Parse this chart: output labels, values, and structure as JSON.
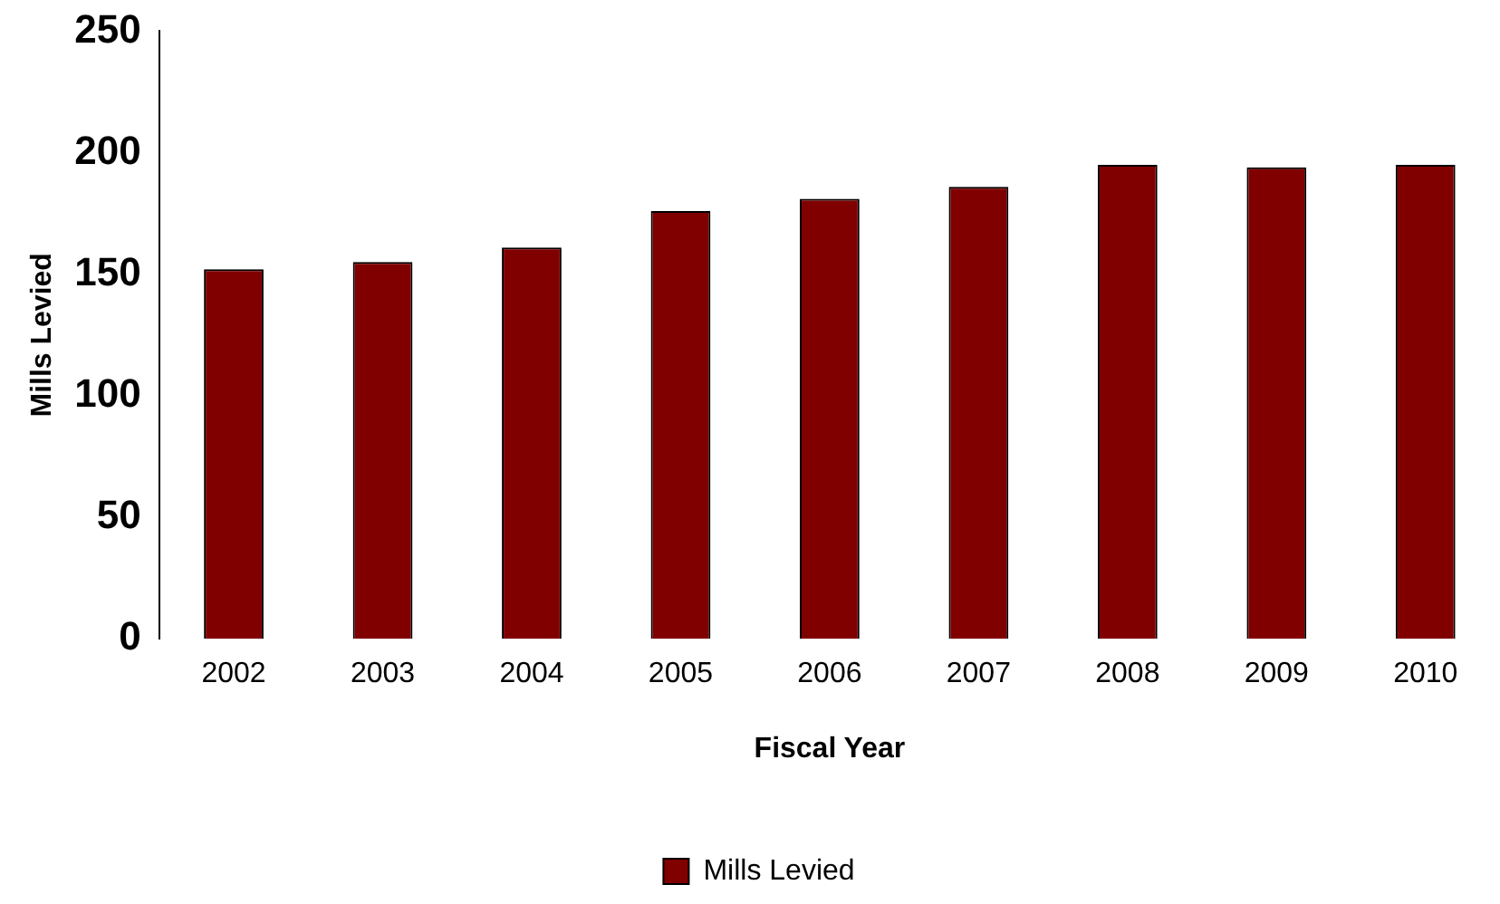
{
  "chart_data": {
    "type": "bar",
    "xlabel": "Fiscal Year",
    "ylabel": "Mills Levied",
    "categories": [
      "2002",
      "2003",
      "2004",
      "2005",
      "2006",
      "2007",
      "2008",
      "2009",
      "2010"
    ],
    "series": [
      {
        "name": "Mills Levied",
        "color": "#800000",
        "values": [
          152,
          155,
          161,
          176,
          181,
          186,
          195,
          194,
          195
        ]
      }
    ],
    "ylim": [
      0,
      250
    ],
    "yticks": [
      0,
      50,
      100,
      150,
      200,
      250
    ],
    "grid": false,
    "legend": "bottom"
  }
}
